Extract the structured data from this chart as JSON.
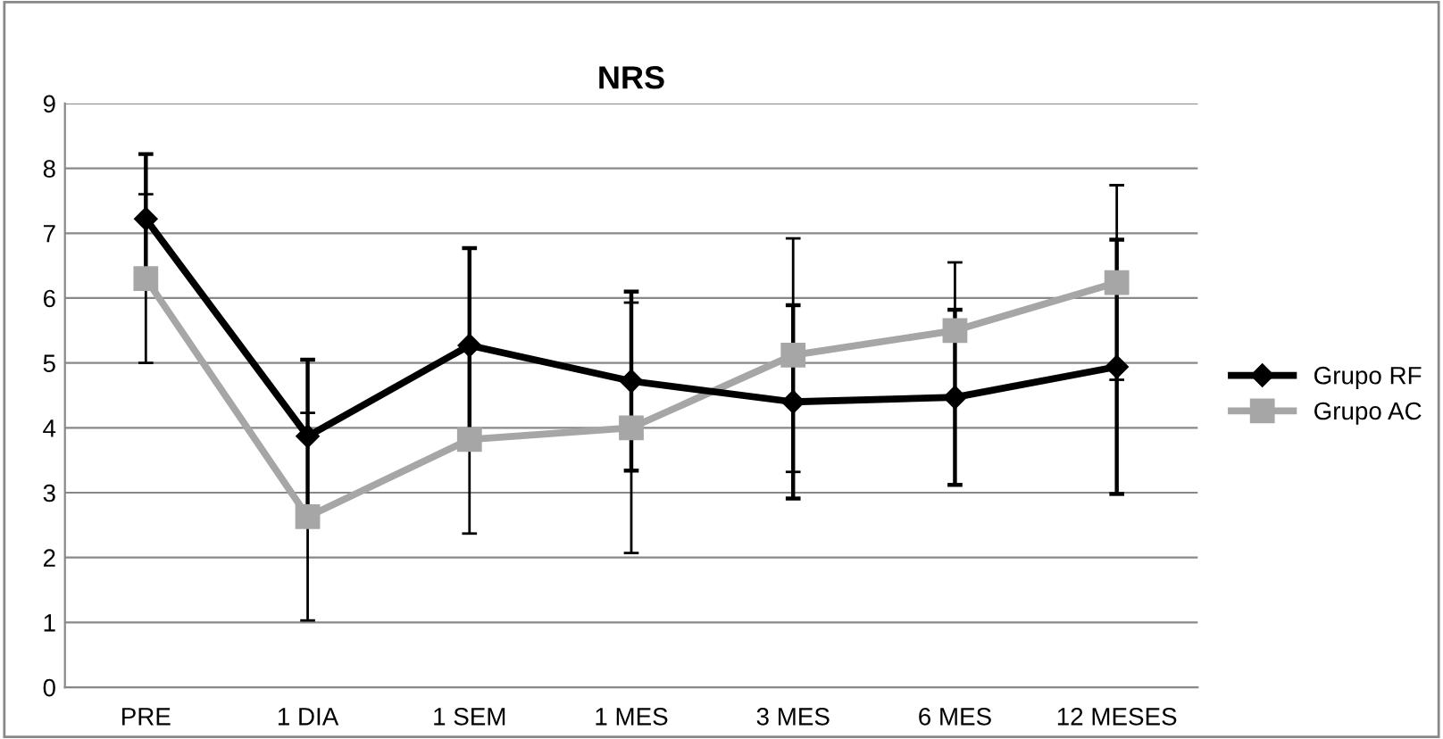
{
  "chart_data": {
    "type": "line",
    "title": "NRS",
    "categories": [
      "PRE",
      "1 DIA",
      "1 SEM",
      "1 MES",
      "3 MES",
      "6 MES",
      "12 MESES"
    ],
    "series": [
      {
        "name": "Grupo RF",
        "color": "#000000",
        "marker": "diamond",
        "values": [
          7.22,
          3.87,
          5.27,
          4.72,
          4.4,
          4.47,
          4.94
        ],
        "errors": [
          1.0,
          1.18,
          1.5,
          1.38,
          1.49,
          1.35,
          1.96
        ]
      },
      {
        "name": "Grupo AC",
        "color": "#a6a6a6",
        "marker": "square",
        "values": [
          6.3,
          2.63,
          3.82,
          4.0,
          5.12,
          5.5,
          6.24
        ],
        "errors": [
          1.3,
          1.6,
          1.45,
          1.93,
          1.8,
          1.05,
          1.5
        ]
      }
    ],
    "ylim": [
      0,
      9
    ],
    "yticks": [
      0,
      1,
      2,
      3,
      4,
      5,
      6,
      7,
      8,
      9
    ],
    "grid": "y",
    "legend": "right",
    "line_style": "solid"
  }
}
